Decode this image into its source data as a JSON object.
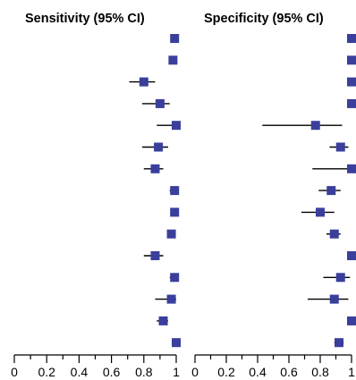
{
  "chart_data": [
    {
      "type": "forest",
      "title": "Sensitivity (95% CI)",
      "xlim": [
        0,
        1
      ],
      "x_ticks": [
        "0",
        "0.2",
        "0.4",
        "0.6",
        "0.8",
        "1"
      ],
      "marker_color": "#3a3f9c",
      "studies": [
        {
          "est": 0.99,
          "lo": 0.97,
          "hi": 1.0
        },
        {
          "est": 0.98,
          "lo": 0.96,
          "hi": 1.0
        },
        {
          "est": 0.8,
          "lo": 0.71,
          "hi": 0.87
        },
        {
          "est": 0.9,
          "lo": 0.79,
          "hi": 0.96
        },
        {
          "est": 1.0,
          "lo": 0.88,
          "hi": 1.0
        },
        {
          "est": 0.89,
          "lo": 0.79,
          "hi": 0.95
        },
        {
          "est": 0.87,
          "lo": 0.8,
          "hi": 0.92
        },
        {
          "est": 0.99,
          "lo": 0.96,
          "hi": 1.0
        },
        {
          "est": 0.99,
          "lo": 0.97,
          "hi": 1.0
        },
        {
          "est": 0.97,
          "lo": 0.95,
          "hi": 0.99
        },
        {
          "est": 0.87,
          "lo": 0.8,
          "hi": 0.92
        },
        {
          "est": 0.99,
          "lo": 0.96,
          "hi": 1.0
        },
        {
          "est": 0.97,
          "lo": 0.87,
          "hi": 1.0
        },
        {
          "est": 0.92,
          "lo": 0.88,
          "hi": 0.95
        },
        {
          "est": 1.0,
          "lo": 0.99,
          "hi": 1.0
        }
      ]
    },
    {
      "type": "forest",
      "title": "Specificity (95% CI)",
      "xlim": [
        0,
        1
      ],
      "x_ticks": [
        "0",
        "0.2",
        "0.4",
        "0.6",
        "0.8",
        "1"
      ],
      "marker_color": "#3a3f9c",
      "studies": [
        {
          "est": 1.0,
          "lo": 0.98,
          "hi": 1.0
        },
        {
          "est": 1.0,
          "lo": 0.99,
          "hi": 1.0
        },
        {
          "est": 1.0,
          "lo": 0.98,
          "hi": 1.0
        },
        {
          "est": 1.0,
          "lo": 0.99,
          "hi": 1.0
        },
        {
          "est": 0.77,
          "lo": 0.43,
          "hi": 0.94
        },
        {
          "est": 0.93,
          "lo": 0.86,
          "hi": 0.98
        },
        {
          "est": 1.0,
          "lo": 0.75,
          "hi": 1.0
        },
        {
          "est": 0.87,
          "lo": 0.79,
          "hi": 0.93
        },
        {
          "est": 0.8,
          "lo": 0.68,
          "hi": 0.89
        },
        {
          "est": 0.89,
          "lo": 0.84,
          "hi": 0.93
        },
        {
          "est": 1.0,
          "lo": 0.99,
          "hi": 1.0
        },
        {
          "est": 0.93,
          "lo": 0.82,
          "hi": 0.99
        },
        {
          "est": 0.89,
          "lo": 0.72,
          "hi": 0.98
        },
        {
          "est": 1.0,
          "lo": 0.99,
          "hi": 1.0
        },
        {
          "est": 0.92,
          "lo": 0.89,
          "hi": 0.95
        }
      ]
    }
  ]
}
